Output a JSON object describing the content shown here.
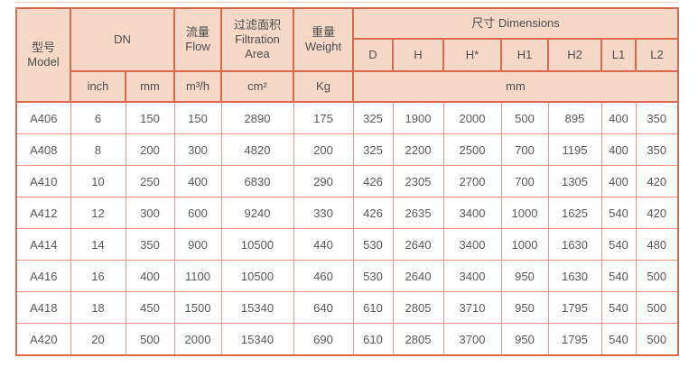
{
  "table": {
    "header": {
      "model": "型号\nModel",
      "dn": "DN",
      "flow": "流量\nFlow",
      "filtration_area": "过滤面积\nFiltration\nArea",
      "weight": "重量\nWeight",
      "dimensions": "尺寸 Dimensions",
      "dim_cols": [
        "D",
        "H",
        "H*",
        "H1",
        "H2",
        "L1",
        "L2"
      ],
      "unit_row": [
        "inch",
        "mm",
        "m³/h",
        "cm²",
        "Kg",
        "mm"
      ]
    },
    "rows": [
      {
        "model": "A406",
        "values": [
          "6",
          "150",
          "150",
          "2890",
          "175",
          "325",
          "1900",
          "2000",
          "500",
          "895",
          "400",
          "350"
        ]
      },
      {
        "model": "A408",
        "values": [
          "8",
          "200",
          "300",
          "4820",
          "200",
          "325",
          "2200",
          "2500",
          "700",
          "1195",
          "400",
          "350"
        ]
      },
      {
        "model": "A410",
        "values": [
          "10",
          "250",
          "400",
          "6830",
          "290",
          "426",
          "2305",
          "2700",
          "700",
          "1305",
          "400",
          "420"
        ]
      },
      {
        "model": "A412",
        "values": [
          "12",
          "300",
          "600",
          "9240",
          "330",
          "426",
          "2635",
          "3400",
          "1000",
          "1625",
          "540",
          "420"
        ]
      },
      {
        "model": "A414",
        "values": [
          "14",
          "350",
          "900",
          "10500",
          "440",
          "530",
          "2640",
          "3400",
          "1000",
          "1630",
          "540",
          "480"
        ]
      },
      {
        "model": "A416",
        "values": [
          "16",
          "400",
          "1100",
          "10500",
          "460",
          "530",
          "2640",
          "3400",
          "950",
          "1630",
          "540",
          "500"
        ]
      },
      {
        "model": "A418",
        "values": [
          "18",
          "450",
          "1500",
          "15340",
          "640",
          "610",
          "2805",
          "3710",
          "950",
          "1795",
          "540",
          "500"
        ]
      },
      {
        "model": "A420",
        "values": [
          "20",
          "500",
          "2000",
          "15340",
          "690",
          "610",
          "2805",
          "3700",
          "950",
          "1795",
          "540",
          "500"
        ]
      }
    ],
    "colors": {
      "header_bg": "#f5d8c6",
      "header_border": "#dd6a4c",
      "grid_border": "#ee9585",
      "text": "#5a5a5a"
    }
  }
}
